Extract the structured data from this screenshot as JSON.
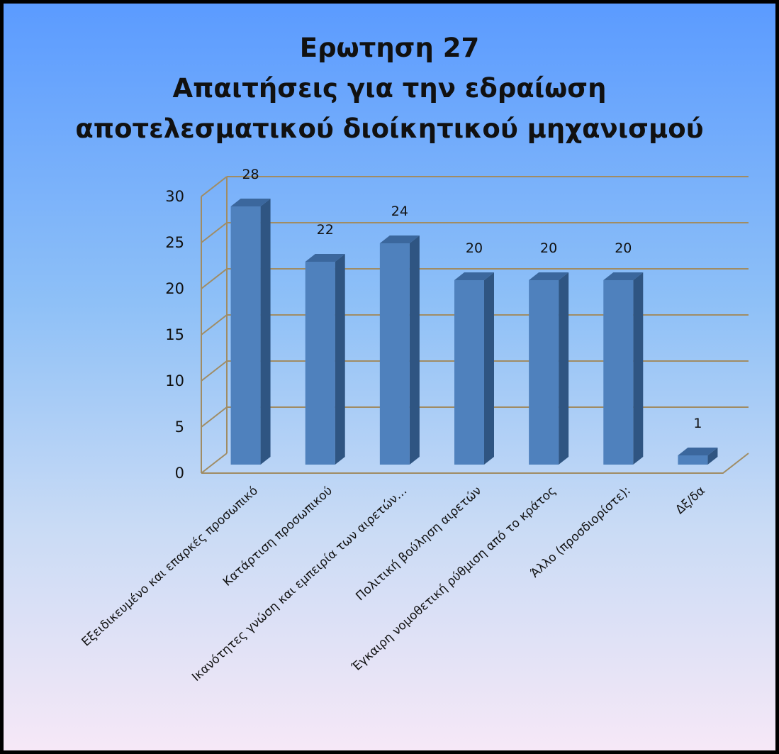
{
  "chart_data": {
    "type": "bar",
    "title_lines": [
      "Ερωτηση 27",
      "Απαιτήσεις για την εδραίωση",
      "αποτελεσματικού διοίκητικού μηχανισμού"
    ],
    "categories": [
      "Εξειδικευμένο και επαρκές προσωπικό",
      "Κατάρτιση προσωπικού",
      "Ικανότητες γνώση και εμπειρία των αιρετών…",
      "Πολιτική βούληση αιρετών",
      "Έγκαιρη νομοθετική ρύθμιση από το κράτος",
      "Άλλο (προσδιορίστε):",
      "Δξ/δα"
    ],
    "values": [
      28,
      22,
      24,
      20,
      20,
      20,
      1
    ],
    "data_labels": [
      "28",
      "22",
      "24",
      "20",
      "20",
      "20",
      "1"
    ],
    "y_ticks": [
      "0",
      "5",
      "10",
      "15",
      "20",
      "25",
      "30"
    ],
    "ylim": [
      0,
      30
    ],
    "grid": true,
    "legend": "none",
    "style": "3d-column",
    "colors": {
      "bar_front": "#4f81bd",
      "bar_side": "#2f5582",
      "bar_top": "#3b679d",
      "gridline": "#a08c64"
    }
  }
}
